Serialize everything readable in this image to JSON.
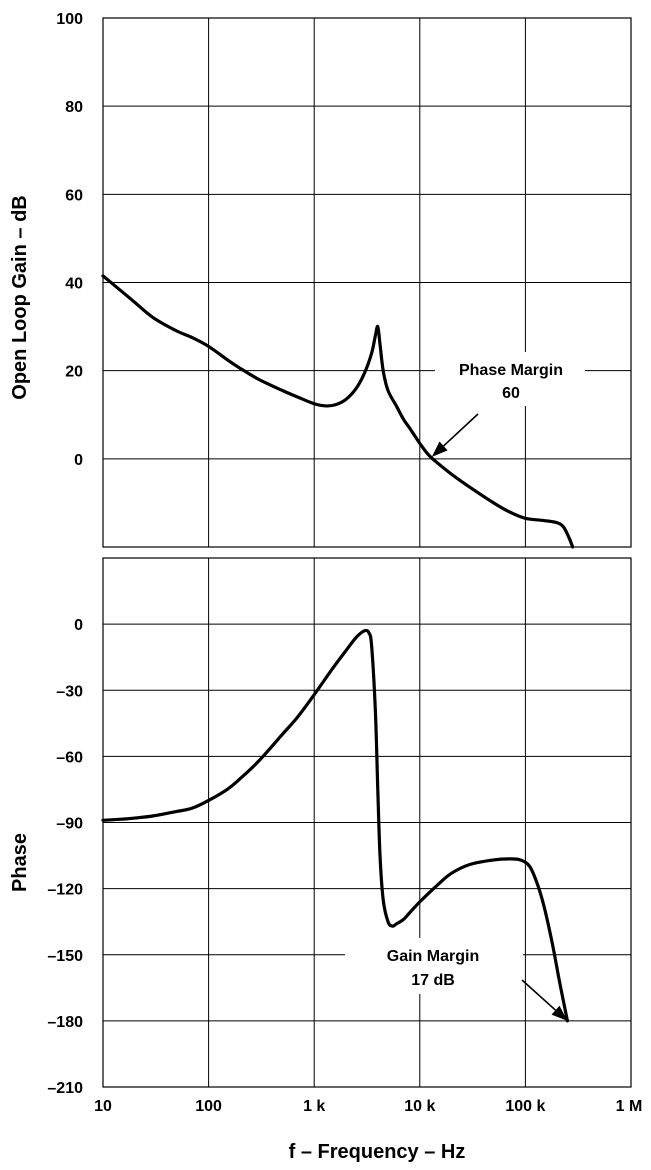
{
  "chart_data": [
    {
      "type": "line",
      "panel": "gain",
      "ylabel": "Open Loop Gain – dB",
      "x_scale": "log",
      "xlim": [
        10,
        1000000
      ],
      "ylim": [
        -20,
        100
      ],
      "y_ticks": [
        0,
        20,
        40,
        60,
        80,
        100
      ],
      "y_tick_labels": [
        "0",
        "20",
        "40",
        "60",
        "80",
        "100"
      ],
      "grid": true,
      "series": [
        {
          "x": [
            10,
            15,
            20,
            30,
            50,
            70,
            100,
            150,
            200,
            300,
            500,
            700,
            1000,
            1300,
            1600,
            2000,
            2500,
            3000,
            3500,
            3800,
            4000,
            4200,
            4500,
            5000,
            6000,
            7000,
            8000,
            10000,
            12000,
            14000,
            20000,
            30000,
            50000,
            70000,
            100000,
            150000,
            200000,
            230000,
            260000,
            280000
          ],
          "y": [
            41.5,
            38,
            35.5,
            32,
            29,
            27.5,
            25.5,
            22.5,
            20.5,
            18,
            15.5,
            14,
            12.5,
            12,
            12.3,
            13.5,
            16,
            19.5,
            24,
            28,
            30,
            26,
            20,
            15.5,
            12,
            9,
            7,
            3.5,
            1,
            -0.5,
            -3.5,
            -6.5,
            -10,
            -12,
            -13.5,
            -14,
            -14.5,
            -15.5,
            -18,
            -20
          ]
        }
      ]
    },
    {
      "type": "line",
      "panel": "phase",
      "ylabel": "Phase",
      "xlabel": "f – Frequency – Hz",
      "x_scale": "log",
      "xlim": [
        10,
        1000000
      ],
      "x_ticks": [
        10,
        100,
        1000,
        10000,
        100000,
        1000000
      ],
      "x_tick_labels": [
        "10",
        "100",
        "1 k",
        "10 k",
        "100 k",
        "1 M"
      ],
      "ylim": [
        -210,
        30
      ],
      "y_ticks": [
        0,
        -30,
        -60,
        -90,
        -120,
        -150,
        -180,
        -210
      ],
      "y_tick_labels": [
        "0",
        "–30",
        "–60",
        "–90",
        "–120",
        "–150",
        "–180",
        "–210"
      ],
      "grid": true,
      "series": [
        {
          "x": [
            10,
            15,
            20,
            30,
            50,
            70,
            100,
            150,
            200,
            300,
            500,
            700,
            1000,
            1500,
            2000,
            2500,
            3000,
            3300,
            3500,
            3800,
            4000,
            4200,
            4500,
            5000,
            5500,
            6000,
            7000,
            8000,
            10000,
            15000,
            20000,
            30000,
            50000,
            70000,
            90000,
            110000,
            130000,
            150000,
            180000,
            210000,
            250000
          ],
          "y": [
            -89,
            -88.5,
            -88,
            -87,
            -85,
            -83.5,
            -80,
            -75,
            -70,
            -62,
            -50,
            -42,
            -32,
            -20,
            -12,
            -6,
            -3,
            -4,
            -10,
            -40,
            -75,
            -105,
            -125,
            -135,
            -137,
            -136,
            -134,
            -131,
            -126,
            -118,
            -113,
            -109,
            -107,
            -106.5,
            -107,
            -110,
            -118,
            -128,
            -145,
            -162,
            -180
          ]
        }
      ]
    }
  ],
  "annotations": {
    "phase_margin_line1": "Phase Margin",
    "phase_margin_line2": "60",
    "gain_margin_line1": "Gain Margin",
    "gain_margin_line2": "17 dB"
  }
}
